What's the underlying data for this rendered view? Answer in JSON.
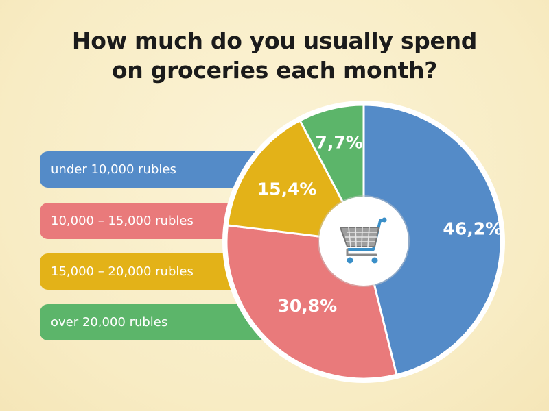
{
  "title_line1": "How much do you usually spend",
  "title_line2": "on groceries each month?",
  "chart_data": {
    "type": "pie",
    "title": "How much do you usually spend on groceries each month?",
    "categories": [
      "under 10,000 rubles",
      "10,000 – 15,000 rubles",
      "15,000 – 20,000 rubles",
      "over 20,000 rubles"
    ],
    "values": [
      46.2,
      30.8,
      15.4,
      7.7
    ],
    "labels": [
      "46,2%",
      "30,8%",
      "15,4%",
      "7,7%"
    ],
    "colors": [
      "#548bc8",
      "#e97a7b",
      "#e3b218",
      "#5cb56a"
    ],
    "legend_position": "left",
    "center_icon": "shopping-cart-icon"
  }
}
